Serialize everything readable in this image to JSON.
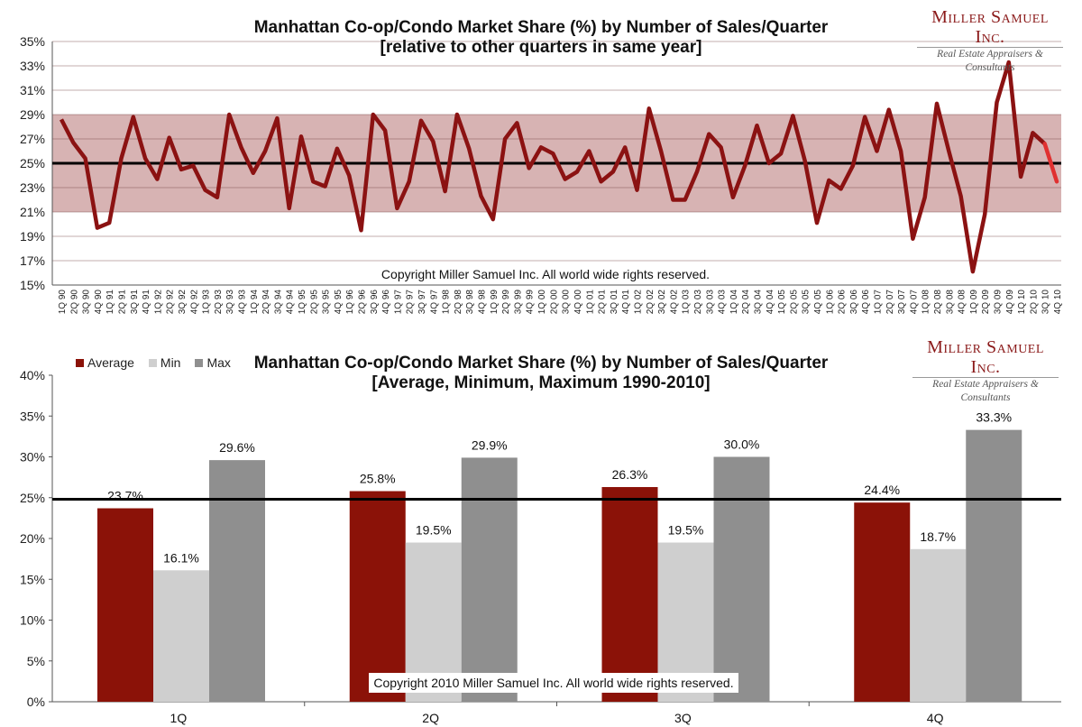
{
  "chart_data": [
    {
      "type": "line",
      "title": "Manhattan Co-op/Condo Market Share (%) by Number of Sales/Quarter",
      "subtitle": "[relative to other quarters in same year]",
      "ylim": [
        15,
        35
      ],
      "yticks": [
        "15%",
        "17%",
        "19%",
        "21%",
        "23%",
        "25%",
        "27%",
        "29%",
        "31%",
        "33%",
        "35%"
      ],
      "band": [
        21,
        29
      ],
      "reference_line": 25,
      "annotation": "Copyright Miller Samuel Inc.  All world wide rights reserved.",
      "x": [
        "1Q 90",
        "2Q 90",
        "3Q 90",
        "4Q 90",
        "1Q 91",
        "2Q 91",
        "3Q 91",
        "4Q 91",
        "1Q 92",
        "2Q 92",
        "3Q 92",
        "4Q 92",
        "1Q 93",
        "2Q 93",
        "3Q 93",
        "4Q 93",
        "1Q 94",
        "2Q 94",
        "3Q 94",
        "4Q 94",
        "1Q 95",
        "2Q 95",
        "3Q 95",
        "4Q 95",
        "1Q 96",
        "2Q 96",
        "3Q 96",
        "4Q 96",
        "1Q 97",
        "2Q 97",
        "3Q 97",
        "4Q 97",
        "1Q 98",
        "2Q 98",
        "3Q 98",
        "4Q 98",
        "1Q 99",
        "2Q 99",
        "3Q 99",
        "4Q 99",
        "1Q 00",
        "2Q 00",
        "3Q 00",
        "4Q 00",
        "1Q 01",
        "2Q 01",
        "3Q 01",
        "4Q 01",
        "1Q 02",
        "2Q 02",
        "3Q 02",
        "4Q 02",
        "1Q 03",
        "2Q 03",
        "3Q 03",
        "4Q 03",
        "1Q 04",
        "2Q 04",
        "3Q 04",
        "4Q 04",
        "1Q 05",
        "2Q 05",
        "3Q 05",
        "4Q 05",
        "1Q 06",
        "2Q 06",
        "3Q 06",
        "4Q 06",
        "1Q 07",
        "2Q 07",
        "3Q 07",
        "4Q 07",
        "1Q 08",
        "2Q 08",
        "3Q 08",
        "4Q 08",
        "1Q 09",
        "2Q 09",
        "3Q 09",
        "4Q 09",
        "1Q 10",
        "2Q 10",
        "3Q 10",
        "4Q 10"
      ],
      "series": [
        {
          "values": [
            28.6,
            26.7,
            25.4,
            19.7,
            20.1,
            25.4,
            28.8,
            25.4,
            23.7,
            27.1,
            24.5,
            24.8,
            22.8,
            22.2,
            29.0,
            26.3,
            24.2,
            26.0,
            28.7,
            21.3,
            27.2,
            23.5,
            23.1,
            26.2,
            24.0,
            19.5,
            29.0,
            27.7,
            21.3,
            23.5,
            28.5,
            26.8,
            22.7,
            29.0,
            26.2,
            22.3,
            20.4,
            27.0,
            28.3,
            24.6,
            26.3,
            25.8,
            23.7,
            24.3,
            26.0,
            23.5,
            24.3,
            26.3,
            22.8,
            29.5,
            26.0,
            22.0,
            22.0,
            24.3,
            27.4,
            26.3,
            22.2,
            24.8,
            28.1,
            25.0,
            25.8,
            28.9,
            25.2,
            20.1,
            23.6,
            22.9,
            24.8,
            28.8,
            26.0,
            29.4,
            26.0,
            18.8,
            22.2,
            29.9,
            26.0,
            22.3,
            16.1,
            20.8,
            30.0,
            33.3,
            23.9,
            27.5,
            26.6,
            23.5
          ],
          "color": "#8b1212",
          "last_segment_color": "#e03030"
        }
      ],
      "colors": {
        "band": "#d7b3b3",
        "line": "#8b1212",
        "reference": "#000000",
        "grid": "#7a4a4a"
      }
    },
    {
      "type": "bar",
      "title": "Manhattan Co-op/Condo Market Share (%) by Number of Sales/Quarter",
      "subtitle": "[Average, Minimum, Maximum 1990-2010]",
      "categories": [
        "1Q",
        "2Q",
        "3Q",
        "4Q"
      ],
      "ylim": [
        0,
        40
      ],
      "yticks": [
        "0%",
        "5%",
        "10%",
        "15%",
        "20%",
        "25%",
        "30%",
        "35%",
        "40%"
      ],
      "reference_line": 24.8,
      "legend_position": "top-left",
      "annotation": "Copyright 2010 Miller Samuel Inc.  All world wide rights reserved.",
      "series": [
        {
          "name": "Average",
          "values": [
            23.7,
            25.8,
            26.3,
            24.4
          ],
          "labels": [
            "23.7%",
            "25.8%",
            "26.3%",
            "24.4%"
          ],
          "color": "#8b1208"
        },
        {
          "name": "Min",
          "values": [
            16.1,
            19.5,
            19.5,
            18.7
          ],
          "labels": [
            "16.1%",
            "19.5%",
            "19.5%",
            "18.7%"
          ],
          "color": "#cfcfcf"
        },
        {
          "name": "Max",
          "values": [
            29.6,
            29.9,
            30.0,
            33.3
          ],
          "labels": [
            "29.6%",
            "29.9%",
            "30.0%",
            "33.3%"
          ],
          "color": "#8f8f8f"
        }
      ]
    }
  ],
  "logo": {
    "name": "Miller Samuel Inc.",
    "tagline": "Real Estate Appraisers & Consultants"
  }
}
